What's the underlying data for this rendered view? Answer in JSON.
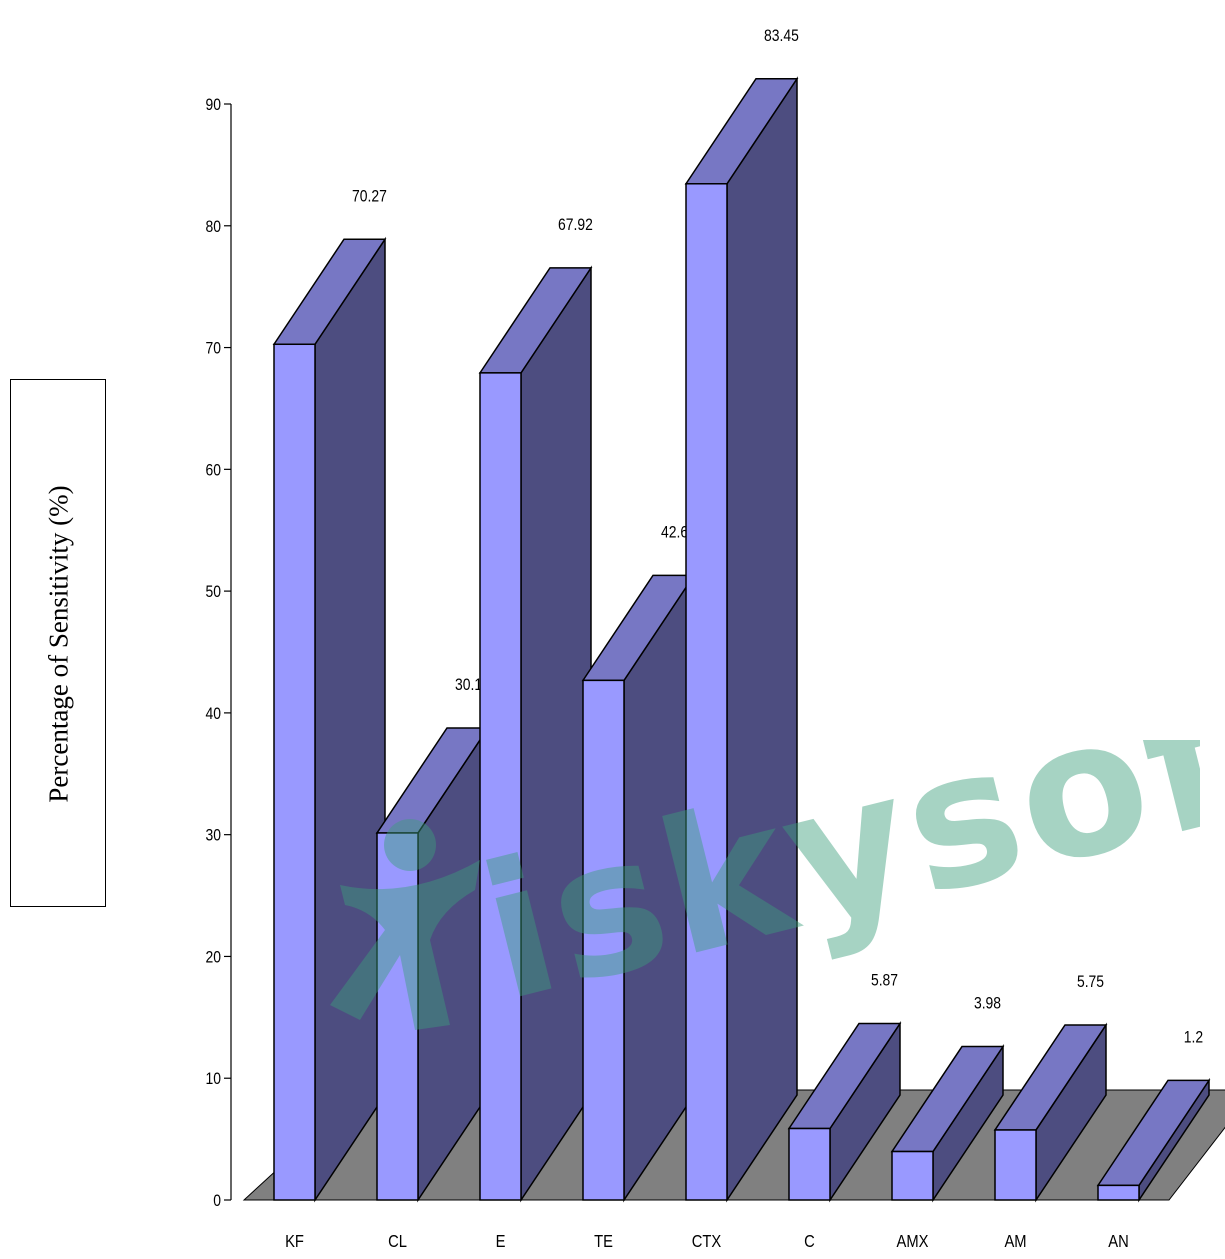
{
  "chart_data": {
    "type": "bar",
    "style": "3d",
    "categories": [
      "KF",
      "CL",
      "E",
      "TE",
      "CTX",
      "C",
      "AMX",
      "AM",
      "AN"
    ],
    "values": [
      70.27,
      30.14,
      67.92,
      42.67,
      83.45,
      5.87,
      3.98,
      5.75,
      1.2
    ],
    "data_labels": [
      "70.27",
      "30.14",
      "67.92",
      "42.67",
      "83.45",
      "5.87",
      "3.98",
      "5.75",
      "1.2"
    ],
    "ylabel": "Percentage of Sensitivity (%)",
    "xlabel": "",
    "ylim": [
      0,
      90
    ],
    "yticks": [
      0,
      10,
      20,
      30,
      40,
      50,
      60,
      70,
      80,
      90
    ],
    "grid": false,
    "legend": "none",
    "colors": {
      "bar_front": "#9999ff",
      "bar_top": "#7777c4",
      "bar_side": "#4d4d80",
      "floor": "#808080",
      "outline": "#000000"
    }
  },
  "watermark": {
    "text": "iskysoft",
    "color": "#3c9e7c"
  }
}
